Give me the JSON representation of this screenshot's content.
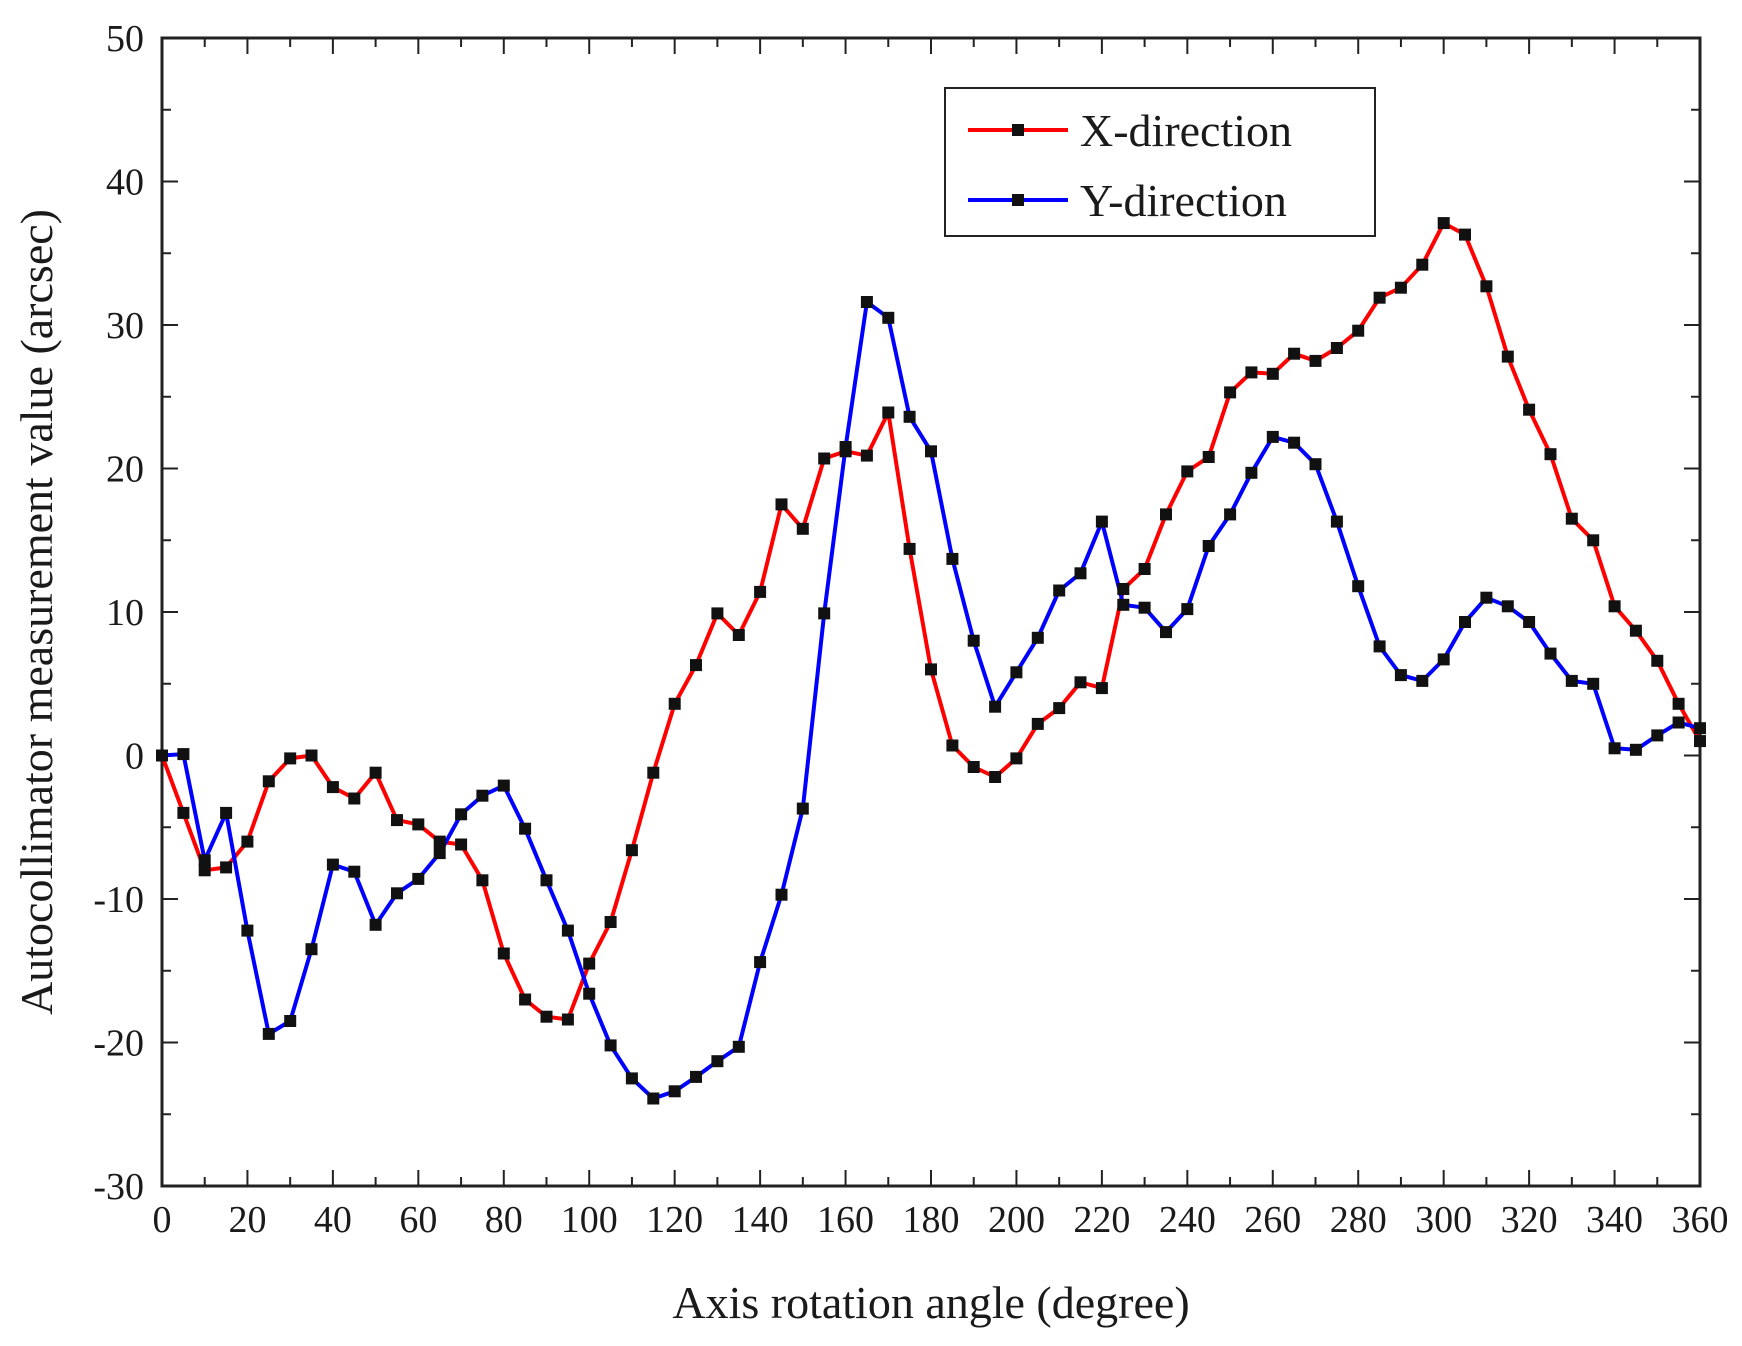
{
  "chart_data": {
    "type": "line",
    "title": "",
    "xlabel": "Axis rotation angle (degree)",
    "ylabel": "Autocollimator measurement value (arcsec)",
    "xlim": [
      0,
      360
    ],
    "ylim": [
      -30,
      50
    ],
    "grid": false,
    "legend_position": "top-right",
    "x_ticks": [
      0,
      20,
      40,
      60,
      80,
      100,
      120,
      140,
      160,
      180,
      200,
      220,
      240,
      260,
      280,
      300,
      320,
      340,
      360
    ],
    "y_ticks": [
      -30,
      -20,
      -10,
      0,
      10,
      20,
      30,
      40,
      50
    ],
    "x": [
      0,
      5,
      10,
      15,
      20,
      25,
      30,
      35,
      40,
      45,
      50,
      55,
      60,
      65,
      70,
      75,
      80,
      85,
      90,
      95,
      100,
      105,
      110,
      115,
      120,
      125,
      130,
      135,
      140,
      145,
      150,
      155,
      160,
      165,
      170,
      175,
      180,
      185,
      190,
      195,
      200,
      205,
      210,
      215,
      220,
      225,
      230,
      235,
      240,
      245,
      250,
      255,
      260,
      265,
      270,
      275,
      280,
      285,
      290,
      295,
      300,
      305,
      310,
      315,
      320,
      325,
      330,
      335,
      340,
      345,
      350,
      355,
      360
    ],
    "series": [
      {
        "name": "X-direction",
        "color": "#ff0000",
        "values": [
          0,
          -4,
          -8,
          -7.8,
          -6,
          -1.8,
          -0.2,
          0,
          -2.2,
          -3,
          -1.2,
          -4.5,
          -4.8,
          -6,
          -6.2,
          -8.7,
          -13.8,
          -17,
          -18.2,
          -18.4,
          -14.5,
          -11.6,
          -6.6,
          -1.2,
          3.6,
          6.3,
          9.9,
          8.4,
          11.4,
          17.5,
          15.8,
          20.7,
          21.2,
          20.9,
          23.9,
          14.4,
          6,
          0.7,
          -0.8,
          -1.5,
          -0.2,
          2.2,
          3.3,
          5.1,
          4.7,
          11.6,
          13,
          16.8,
          19.8,
          20.8,
          25.3,
          26.7,
          26.6,
          28,
          27.5,
          28.4,
          29.6,
          31.9,
          32.6,
          34.2,
          37.1,
          36.3,
          32.7,
          27.8,
          24.1,
          21,
          16.5,
          15,
          10.4,
          8.7,
          6.6,
          3.6,
          1
        ]
      },
      {
        "name": "Y-direction",
        "color": "#0000ff",
        "values": [
          0,
          0.1,
          -7.3,
          -4,
          -12.2,
          -19.4,
          -18.5,
          -13.5,
          -7.6,
          -8.1,
          -11.8,
          -9.6,
          -8.6,
          -6.8,
          -4.1,
          -2.8,
          -2.1,
          -5.1,
          -8.7,
          -12.2,
          -16.6,
          -20.2,
          -22.5,
          -23.9,
          -23.4,
          -22.4,
          -21.3,
          -20.3,
          -14.4,
          -9.7,
          -3.7,
          9.9,
          21.5,
          31.6,
          30.5,
          23.6,
          21.2,
          13.7,
          8,
          3.4,
          5.8,
          8.2,
          11.5,
          12.7,
          16.3,
          10.5,
          10.3,
          8.6,
          10.2,
          14.6,
          16.8,
          19.7,
          22.2,
          21.8,
          20.3,
          16.3,
          11.8,
          7.6,
          5.6,
          5.2,
          6.7,
          9.3,
          11,
          10.4,
          9.3,
          7.1,
          5.2,
          5,
          0.5,
          0.4,
          1.4,
          2.3,
          1.9
        ]
      }
    ]
  }
}
